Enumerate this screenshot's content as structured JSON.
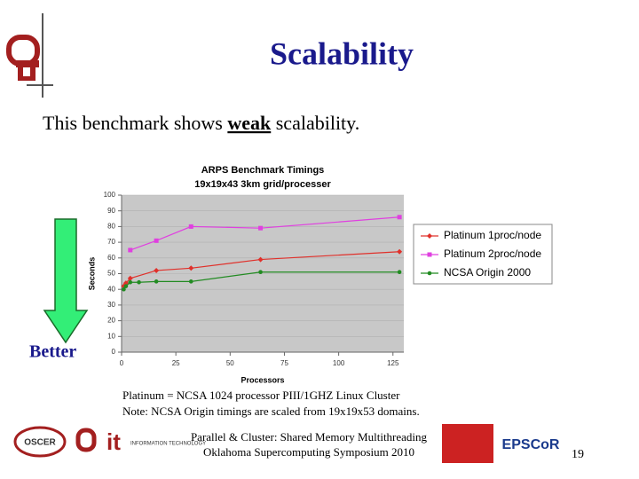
{
  "header": {
    "title": "Scalability"
  },
  "body": {
    "parts": [
      "This benchmark shows ",
      "weak",
      " scalability."
    ]
  },
  "arrow_label": "Better",
  "chart_data": {
    "type": "line",
    "title": "ARPS Benchmark Timings",
    "subtitle": "19x19x43 3km grid/processer",
    "xlabel": "Processors",
    "ylabel": "Seconds",
    "xlim": [
      0,
      130
    ],
    "xticks": [
      0,
      25,
      50,
      75,
      100,
      125
    ],
    "ylim": [
      0,
      100
    ],
    "yticks": [
      0,
      10,
      20,
      30,
      40,
      50,
      60,
      70,
      80,
      90,
      100
    ],
    "legend": "right",
    "series": [
      {
        "name": "Platinum 1proc/node",
        "color": "#e0302a",
        "marker": "diamond",
        "x": [
          1,
          2,
          4,
          16,
          32,
          64,
          128
        ],
        "values": [
          42,
          44,
          47,
          52,
          53.5,
          59,
          64
        ]
      },
      {
        "name": "Platinum 2proc/node",
        "color": "#e040e0",
        "marker": "square",
        "x": [
          4,
          16,
          32,
          64,
          128
        ],
        "values": [
          65,
          71,
          80,
          79,
          86
        ]
      },
      {
        "name": "NCSA Origin 2000",
        "color": "#228b22",
        "marker": "circle",
        "x": [
          1,
          2,
          4,
          8,
          16,
          32,
          64,
          128
        ],
        "values": [
          40,
          42,
          44.5,
          44.5,
          45,
          45,
          51,
          51
        ]
      }
    ]
  },
  "notes": [
    "Platinum = NCSA 1024 processor PIII/1GHZ Linux Cluster",
    "Note: NCSA Origin timings are scaled from 19x19x53 domains."
  ],
  "footer": {
    "lines": [
      "Parallel & Cluster: Shared Memory Multithreading",
      "Oklahoma Supercomputing Symposium 2010"
    ],
    "page": "19"
  },
  "logos": [
    "OSCER",
    "INFORMATION TECHNOLOGY",
    "EPSCoR"
  ]
}
